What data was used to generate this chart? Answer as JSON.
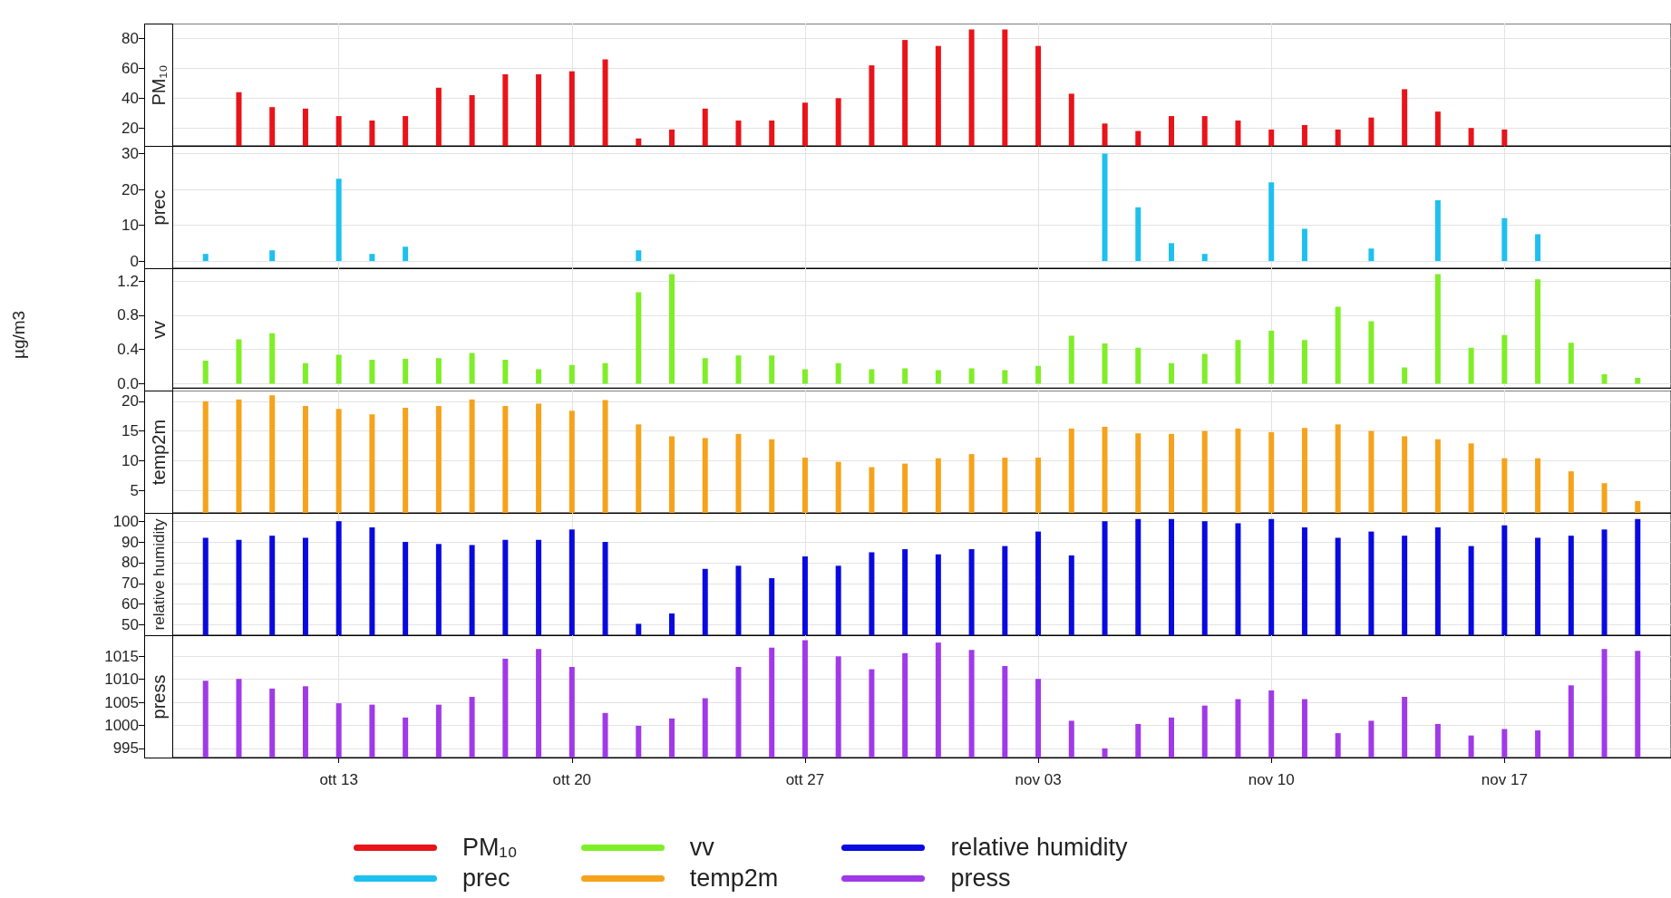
{
  "chart_data": [
    {
      "type": "bar",
      "x": [
        "--10-10",
        "--10-11",
        "--10-12",
        "--10-13",
        "--10-14",
        "--10-15",
        "--10-16",
        "--10-17",
        "--10-18",
        "--10-19",
        "--10-20",
        "--10-21",
        "--10-22",
        "--10-23",
        "--10-24",
        "--10-25",
        "--10-26",
        "--10-27",
        "--10-28",
        "--10-29",
        "--10-30",
        "--10-31",
        "--11-01",
        "--11-02",
        "--11-03",
        "--11-04",
        "--11-05",
        "--11-06",
        "--11-07",
        "--11-08",
        "--11-09",
        "--11-10",
        "--11-11",
        "--11-12",
        "--11-13",
        "--11-14",
        "--11-15",
        "--11-16",
        "--11-17"
      ],
      "series": [
        {
          "name": "PM₁₀",
          "color": "#e8141a",
          "values": [
            44,
            34,
            33,
            28,
            25,
            28,
            47,
            42,
            56,
            56,
            58,
            66,
            13,
            19,
            33,
            25,
            25,
            37,
            40,
            62,
            79,
            75,
            86,
            86,
            75,
            43,
            23,
            18,
            28,
            28,
            25,
            19,
            22,
            19,
            27,
            46,
            31,
            20,
            19
          ]
        }
      ],
      "xlim": [
        "--10-08",
        "--11-22"
      ],
      "xticks": [
        {
          "value": "--10-13",
          "label": "ott 13"
        },
        {
          "value": "--10-20",
          "label": "ott 20"
        },
        {
          "value": "--10-27",
          "label": "ott 27"
        },
        {
          "value": "--11-03",
          "label": "nov 03"
        },
        {
          "value": "--11-10",
          "label": "nov 10"
        },
        {
          "value": "--11-17",
          "label": "nov 17"
        }
      ],
      "ylim": [
        8,
        90
      ],
      "yticks": [
        20,
        40,
        60,
        80
      ],
      "grid": true,
      "legend": "bottom",
      "tick_labels": "y"
    },
    {
      "type": "bar",
      "x": [
        "--10-09",
        "--10-10",
        "--10-11",
        "--10-12",
        "--10-13",
        "--10-14",
        "--10-15",
        "--10-16",
        "--10-17",
        "--10-18",
        "--10-19",
        "--10-20",
        "--10-21",
        "--10-22",
        "--10-23",
        "--10-24",
        "--10-25",
        "--10-26",
        "--10-27",
        "--10-28",
        "--10-29",
        "--10-30",
        "--10-31",
        "--11-01",
        "--11-02",
        "--11-03",
        "--11-04",
        "--11-05",
        "--11-06",
        "--11-07",
        "--11-08",
        "--11-09",
        "--11-10",
        "--11-11",
        "--11-12",
        "--11-13",
        "--11-14",
        "--11-15",
        "--11-16",
        "--11-17",
        "--11-18",
        "--11-19",
        "--11-20",
        "--11-21"
      ],
      "series": [
        {
          "name": "prec",
          "color": "#1ec0ee",
          "values": [
            2,
            0,
            3,
            0,
            23,
            2,
            4,
            0,
            0,
            0,
            0,
            0,
            0,
            3,
            0,
            0,
            0,
            0,
            0,
            0,
            0,
            0,
            0,
            0,
            0,
            0,
            0,
            30,
            15,
            5,
            2,
            0,
            22,
            9,
            0,
            3.5,
            0,
            17,
            0,
            12,
            7.5,
            0,
            0,
            0
          ]
        }
      ],
      "xlim": [
        "--10-08",
        "--11-22"
      ],
      "xticks": [
        {
          "value": "--10-13",
          "label": "ott 13"
        },
        {
          "value": "--10-20",
          "label": "ott 20"
        },
        {
          "value": "--10-27",
          "label": "ott 27"
        },
        {
          "value": "--11-03",
          "label": "nov 03"
        },
        {
          "value": "--11-10",
          "label": "nov 10"
        },
        {
          "value": "--11-17",
          "label": "nov 17"
        }
      ],
      "ylim": [
        -2,
        32
      ],
      "yticks": [
        0,
        10,
        20,
        30
      ],
      "grid": true,
      "legend": "bottom",
      "tick_labels": "y"
    },
    {
      "type": "bar",
      "ylabel": "µg/m3",
      "x": [
        "--10-09",
        "--10-10",
        "--10-11",
        "--10-12",
        "--10-13",
        "--10-14",
        "--10-15",
        "--10-16",
        "--10-17",
        "--10-18",
        "--10-19",
        "--10-20",
        "--10-21",
        "--10-22",
        "--10-23",
        "--10-24",
        "--10-25",
        "--10-26",
        "--10-27",
        "--10-28",
        "--10-29",
        "--10-30",
        "--10-31",
        "--11-01",
        "--11-02",
        "--11-03",
        "--11-04",
        "--11-05",
        "--11-06",
        "--11-07",
        "--11-08",
        "--11-09",
        "--11-10",
        "--11-11",
        "--11-12",
        "--11-13",
        "--11-14",
        "--11-15",
        "--11-16",
        "--11-17",
        "--11-18",
        "--11-19",
        "--11-20",
        "--11-21"
      ],
      "series": [
        {
          "name": "vv",
          "color": "#7fee28",
          "values": [
            0.27,
            0.52,
            0.59,
            0.24,
            0.34,
            0.28,
            0.29,
            0.3,
            0.36,
            0.28,
            0.17,
            0.22,
            0.24,
            1.07,
            1.28,
            0.3,
            0.33,
            0.33,
            0.17,
            0.24,
            0.17,
            0.18,
            0.16,
            0.18,
            0.16,
            0.21,
            0.56,
            0.47,
            0.42,
            0.24,
            0.35,
            0.51,
            0.62,
            0.51,
            0.9,
            0.73,
            0.19,
            1.28,
            0.42,
            0.57,
            1.22,
            0.48,
            0.11,
            0.07
          ]
        }
      ],
      "xlim": [
        "--10-08",
        "--11-22"
      ],
      "xticks": [
        {
          "value": "--10-13",
          "label": "ott 13"
        },
        {
          "value": "--10-20",
          "label": "ott 20"
        },
        {
          "value": "--10-27",
          "label": "ott 27"
        },
        {
          "value": "--11-03",
          "label": "nov 03"
        },
        {
          "value": "--11-10",
          "label": "nov 10"
        },
        {
          "value": "--11-17",
          "label": "nov 17"
        }
      ],
      "ylim": [
        -0.05,
        1.35
      ],
      "yticks": [
        {
          "value": 0,
          "label": "0.0"
        },
        0.4,
        0.8,
        1.2
      ],
      "grid": true,
      "legend": "bottom",
      "tick_labels": "y"
    },
    {
      "type": "bar",
      "x": [
        "--10-09",
        "--10-10",
        "--10-11",
        "--10-12",
        "--10-13",
        "--10-14",
        "--10-15",
        "--10-16",
        "--10-17",
        "--10-18",
        "--10-19",
        "--10-20",
        "--10-21",
        "--10-22",
        "--10-23",
        "--10-24",
        "--10-25",
        "--10-26",
        "--10-27",
        "--10-28",
        "--10-29",
        "--10-30",
        "--10-31",
        "--11-01",
        "--11-02",
        "--11-03",
        "--11-04",
        "--11-05",
        "--11-06",
        "--11-07",
        "--11-08",
        "--11-09",
        "--11-10",
        "--11-11",
        "--11-12",
        "--11-13",
        "--11-14",
        "--11-15",
        "--11-16",
        "--11-17",
        "--11-18",
        "--11-19",
        "--11-20",
        "--11-21"
      ],
      "series": [
        {
          "name": "temp2m",
          "color": "#f5a31c",
          "values": [
            20,
            20.3,
            21,
            19.2,
            18.7,
            17.8,
            18.9,
            19.2,
            20.3,
            19.2,
            19.6,
            18.4,
            20.2,
            16.1,
            14.1,
            13.8,
            14.5,
            13.6,
            10.5,
            9.8,
            8.9,
            9.5,
            10.4,
            11.1,
            10.5,
            10.5,
            15.4,
            15.7,
            14.6,
            14.5,
            15,
            15.4,
            14.8,
            15.5,
            16.1,
            15,
            14.1,
            13.6,
            12.9,
            10.4,
            10.4,
            8.2,
            6.2,
            3.2
          ]
        }
      ],
      "xlim": [
        "--10-08",
        "--11-22"
      ],
      "xticks": [
        {
          "value": "--10-13",
          "label": "ott 13"
        },
        {
          "value": "--10-20",
          "label": "ott 20"
        },
        {
          "value": "--10-27",
          "label": "ott 27"
        },
        {
          "value": "--11-03",
          "label": "nov 03"
        },
        {
          "value": "--11-10",
          "label": "nov 10"
        },
        {
          "value": "--11-17",
          "label": "nov 17"
        }
      ],
      "ylim": [
        1.2,
        21.8
      ],
      "yticks": [
        5,
        10,
        15,
        20
      ],
      "grid": true,
      "legend": "bottom",
      "tick_labels": "y"
    },
    {
      "type": "bar",
      "x": [
        "--10-09",
        "--10-10",
        "--10-11",
        "--10-12",
        "--10-13",
        "--10-14",
        "--10-15",
        "--10-16",
        "--10-17",
        "--10-18",
        "--10-19",
        "--10-20",
        "--10-21",
        "--10-22",
        "--10-23",
        "--10-24",
        "--10-25",
        "--10-26",
        "--10-27",
        "--10-28",
        "--10-29",
        "--10-30",
        "--10-31",
        "--11-01",
        "--11-02",
        "--11-03",
        "--11-04",
        "--11-05",
        "--11-06",
        "--11-07",
        "--11-08",
        "--11-09",
        "--11-10",
        "--11-11",
        "--11-12",
        "--11-13",
        "--11-14",
        "--11-15",
        "--11-16",
        "--11-17",
        "--11-18",
        "--11-19",
        "--11-20",
        "--11-21"
      ],
      "series": [
        {
          "name": "relative humidity",
          "color": "#0a0ae0",
          "values": [
            92,
            91,
            93,
            92,
            100,
            97,
            90,
            89,
            88.5,
            91,
            91,
            96,
            90,
            50.5,
            55.5,
            77,
            78.5,
            72.5,
            83,
            78.5,
            85,
            86.5,
            84,
            86.5,
            88,
            95,
            83.5,
            100,
            101,
            101,
            100,
            99,
            101,
            97,
            92,
            95,
            93,
            97,
            88,
            98,
            92,
            93,
            96,
            101
          ]
        }
      ],
      "xlim": [
        "--10-08",
        "--11-22"
      ],
      "xticks": [
        {
          "value": "--10-13",
          "label": "ott 13"
        },
        {
          "value": "--10-20",
          "label": "ott 20"
        },
        {
          "value": "--10-27",
          "label": "ott 27"
        },
        {
          "value": "--11-03",
          "label": "nov 03"
        },
        {
          "value": "--11-10",
          "label": "nov 10"
        },
        {
          "value": "--11-17",
          "label": "nov 17"
        }
      ],
      "ylim": [
        45,
        104
      ],
      "yticks": [
        50,
        60,
        70,
        80,
        90,
        100
      ],
      "grid": true,
      "legend": "bottom",
      "tick_labels": "y"
    },
    {
      "type": "bar",
      "x": [
        "--10-09",
        "--10-10",
        "--10-11",
        "--10-12",
        "--10-13",
        "--10-14",
        "--10-15",
        "--10-16",
        "--10-17",
        "--10-18",
        "--10-19",
        "--10-20",
        "--10-21",
        "--10-22",
        "--10-23",
        "--10-24",
        "--10-25",
        "--10-26",
        "--10-27",
        "--10-28",
        "--10-29",
        "--10-30",
        "--10-31",
        "--11-01",
        "--11-02",
        "--11-03",
        "--11-04",
        "--11-05",
        "--11-06",
        "--11-07",
        "--11-08",
        "--11-09",
        "--11-10",
        "--11-11",
        "--11-12",
        "--11-13",
        "--11-14",
        "--11-15",
        "--11-16",
        "--11-17",
        "--11-18",
        "--11-19",
        "--11-20",
        "--11-21"
      ],
      "series": [
        {
          "name": "press",
          "color": "#a03ae8",
          "values": [
            1009.7,
            1010.1,
            1008,
            1008.5,
            1004.8,
            1004.5,
            1001.7,
            1004.5,
            1006.2,
            1014.5,
            1016.6,
            1012.7,
            1002.7,
            999.9,
            1001.5,
            1005.9,
            1012.7,
            1016.9,
            1018.5,
            1015,
            1012.2,
            1015.7,
            1018,
            1016.4,
            1012.9,
            1010.1,
            1001,
            995,
            1000.3,
            1001.7,
            1004.3,
            1005.7,
            1007.6,
            1005.7,
            998.3,
            1001,
            1006.2,
            1000.3,
            997.8,
            999.2,
            998.9,
            1008.7,
            1016.6,
            1016.2
          ]
        }
      ],
      "xlim": [
        "--10-08",
        "--11-22"
      ],
      "xticks": [
        {
          "value": "--10-13",
          "label": "ott 13"
        },
        {
          "value": "--10-20",
          "label": "ott 20"
        },
        {
          "value": "--10-27",
          "label": "ott 27"
        },
        {
          "value": "--11-03",
          "label": "nov 03"
        },
        {
          "value": "--11-10",
          "label": "nov 10"
        },
        {
          "value": "--11-17",
          "label": "nov 17"
        }
      ],
      "ylim": [
        993,
        1019.6
      ],
      "yticks": [
        995,
        1000,
        1005,
        1010,
        1015
      ],
      "grid": true,
      "legend": "bottom"
    }
  ]
}
